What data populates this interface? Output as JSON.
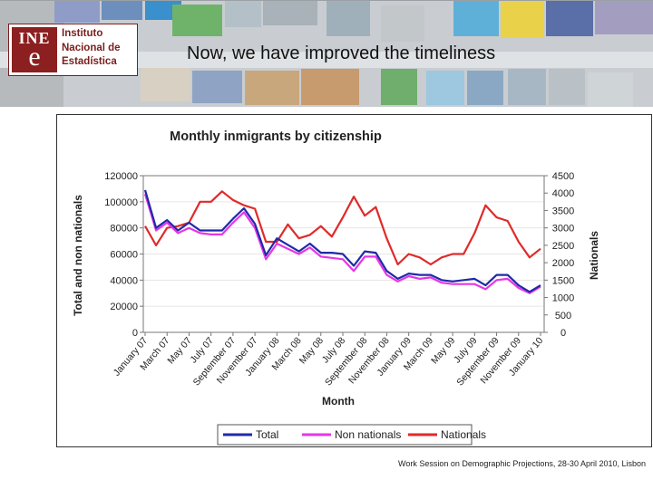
{
  "slide": {
    "title": "Now, we have improved the timeliness",
    "footer": "Work Session on Demographic Projections, 28-30 April 2010, Lisbon",
    "logo": {
      "mark_top": "INE",
      "mark_bottom": "e",
      "line1": "Instituto",
      "line2": "Nacional de",
      "line3": "Estadística"
    }
  },
  "colors": {
    "total": "#1f2aa8",
    "non_nationals": "#e636e6",
    "nationals": "#e02a2a",
    "brand": "#8c1f1f"
  },
  "chart_data": {
    "type": "line",
    "title": "Monthly inmigrants by citizenship",
    "xlabel": "Month",
    "ylabel": "Total and non nationals",
    "y2label": "Nationals",
    "ylim": [
      0,
      120000
    ],
    "y2lim": [
      0,
      4500
    ],
    "yticks": [
      "0",
      "20000",
      "40000",
      "60000",
      "80000",
      "100000",
      "120000"
    ],
    "y2ticks": [
      "0",
      "500",
      "1000",
      "1500",
      "2000",
      "2500",
      "3000",
      "3500",
      "4000",
      "4500"
    ],
    "x": [
      "January 07",
      "February 07",
      "March 07",
      "April 07",
      "May 07",
      "June 07",
      "July 07",
      "August 07",
      "September 07",
      "October 07",
      "November 07",
      "December 07",
      "January 08",
      "February 08",
      "March 08",
      "April 08",
      "May 08",
      "June 08",
      "July 08",
      "August 08",
      "September 08",
      "October 08",
      "November 08",
      "December 08",
      "January 09",
      "February 09",
      "March 09",
      "April 09",
      "May 09",
      "June 09",
      "July 09",
      "August 09",
      "September 09",
      "October 09",
      "November 09",
      "December 09",
      "January 10"
    ],
    "xtick_labels": [
      "January 07",
      "March 07",
      "May 07",
      "July 07",
      "September 07",
      "November 07",
      "January 08",
      "March 08",
      "May 08",
      "July 08",
      "September 08",
      "November 08",
      "January 09",
      "March 09",
      "May 09",
      "July 09",
      "September 09",
      "November 09",
      "January 10"
    ],
    "legend_position": "bottom",
    "series": [
      {
        "name": "Total",
        "axis": "left",
        "values": [
          109000,
          80000,
          86000,
          78000,
          84000,
          78000,
          78000,
          78000,
          87000,
          95000,
          83000,
          59000,
          72000,
          67000,
          62000,
          68000,
          61000,
          61000,
          60000,
          51000,
          62000,
          61000,
          47000,
          41000,
          45000,
          44000,
          44000,
          40000,
          39000,
          40000,
          41000,
          36000,
          44000,
          44000,
          36000,
          31000,
          36000
        ]
      },
      {
        "name": "Non nationals",
        "axis": "left",
        "values": [
          106000,
          78000,
          84000,
          76000,
          80000,
          76000,
          75000,
          75000,
          84000,
          92000,
          80000,
          56000,
          68000,
          64000,
          60000,
          65000,
          58000,
          57000,
          56000,
          47000,
          58000,
          58000,
          44000,
          39000,
          43000,
          41000,
          42000,
          38000,
          37000,
          37000,
          37000,
          33000,
          40000,
          41000,
          34000,
          30000,
          35000
        ]
      },
      {
        "name": "Nationals",
        "axis": "right",
        "values": [
          3050,
          2500,
          3000,
          3050,
          3150,
          3750,
          3750,
          4050,
          3800,
          3650,
          3550,
          2600,
          2600,
          3100,
          2700,
          2800,
          3050,
          2750,
          3300,
          3900,
          3350,
          3600,
          2700,
          1950,
          2250,
          2150,
          1950,
          2150,
          2250,
          2250,
          2850,
          3650,
          3300,
          3200,
          2600,
          2150,
          2400
        ]
      }
    ]
  }
}
